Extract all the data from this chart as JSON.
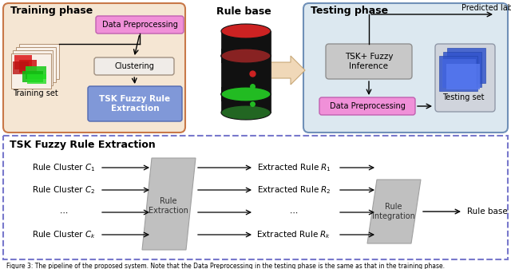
{
  "top": {
    "training_phase_label": "Training phase",
    "rule_base_label": "Rule base",
    "testing_phase_label": "Testing phase",
    "training_set_label": "Training set",
    "data_preprocessing_label": "Data Preprocessing",
    "clustering_label": "Clustering",
    "tsk_extraction_label": "TSK Fuzzy Rule\nExtraction",
    "tsk_inference_label": "TSK+ Fuzzy\nInference",
    "data_preprocessing2_label": "Data Preprocessing",
    "testing_set_label": "Testing set",
    "predicted_label": "Predicted label"
  },
  "bottom": {
    "title": "TSK Fuzzy Rule Extraction",
    "clusters": [
      "Rule Cluster $C_1$",
      "Rule Cluster $C_2$",
      "$\\cdots$",
      "Rule Cluster $C_k$"
    ],
    "rules": [
      "Extracted Rule $R_1$",
      "Extracted Rule $R_2$",
      "$\\cdots$",
      "Extracted Rule $R_k$"
    ],
    "box1_label": "Rule\nExtraction",
    "box2_label": "Rule\nIntegration",
    "output_label": "Rule base"
  },
  "caption": "Figure 3: The pipeline of the proposed system. Note that the Data Preprocessing in the testing phase is the same as that in the training phase.",
  "colors": {
    "training_phase_bg": "#f5e6d3",
    "training_phase_border": "#c87848",
    "testing_phase_bg": "#dce8f0",
    "testing_phase_border": "#7090b8",
    "data_preprocessing_bg": "#f090d8",
    "data_preprocessing_border": "#c060b0",
    "clustering_bg": "#f0ece8",
    "clustering_border": "#a09080",
    "tsk_extraction_bg": "#8098d8",
    "tsk_extraction_border": "#5068b0",
    "tsk_inference_bg": "#c8c8c8",
    "tsk_inference_border": "#909090",
    "testing_set_bg": "#d0d0d8",
    "testing_set_border": "#909090",
    "bottom_border": "#7878cc",
    "parallelogram_bg": "#c0c0c0",
    "parallelogram_edge": "#a0a0a0",
    "arrow_fill": "#f0d8b8",
    "arrow_edge": "#c8a878"
  }
}
